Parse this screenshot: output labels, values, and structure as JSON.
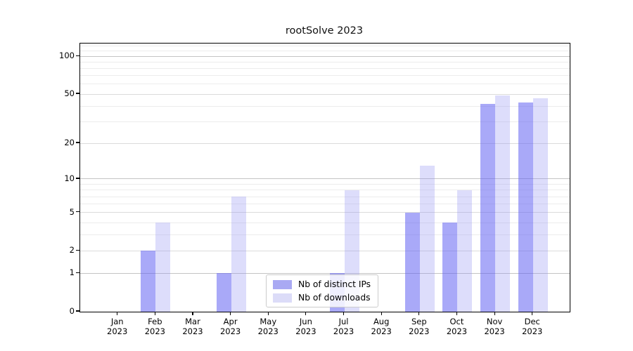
{
  "chart_data": {
    "type": "bar",
    "title": "rootSolve 2023",
    "x_year": "2023",
    "categories": [
      "Jan",
      "Feb",
      "Mar",
      "Apr",
      "May",
      "Jun",
      "Jul",
      "Aug",
      "Sep",
      "Oct",
      "Nov",
      "Dec"
    ],
    "series": [
      {
        "name": "Nb of distinct IPs",
        "fill": "rgba(99,99,243,0.55)",
        "swatch": "#a9a9f3",
        "values": [
          0,
          2,
          0,
          1,
          0,
          0,
          1,
          0,
          5,
          4,
          42,
          43
        ]
      },
      {
        "name": "Nb of downloads",
        "fill": "rgba(142,142,243,0.30)",
        "swatch": "#dcdcf8",
        "values": [
          0,
          4,
          0,
          7,
          0,
          0,
          8,
          0,
          13,
          8,
          49,
          46
        ]
      }
    ],
    "y_scale": "log1p",
    "y_ticks": [
      0,
      1,
      2,
      5,
      10,
      20,
      50,
      100
    ],
    "y_minor_grid": [
      3,
      4,
      6,
      7,
      8,
      9,
      30,
      40,
      60,
      70,
      80,
      90,
      110,
      120
    ],
    "ylim": [
      0,
      126
    ],
    "grid": true,
    "legend_position": "lower-center-inside"
  },
  "colors": {
    "background": "#ffffff",
    "spine": "#000000",
    "grid_major": "#c4c4c4",
    "grid_mid": "#dbdbdb",
    "grid_minor": "#ececec",
    "legend_border": "#cccccc",
    "legend_bg": "rgba(255,255,255,0.8)",
    "text": "#000000"
  }
}
